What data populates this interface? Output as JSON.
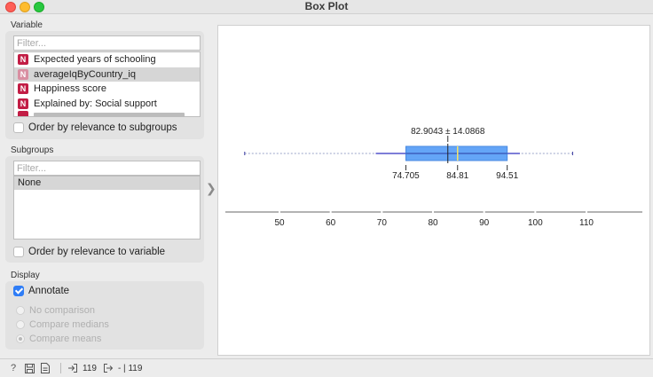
{
  "window": {
    "title": "Box Plot"
  },
  "variable": {
    "label": "Variable",
    "filter_placeholder": "Filter...",
    "items": [
      {
        "label": "Expected years of schooling",
        "type": "N"
      },
      {
        "label": "averageIqByCountry_iq",
        "type": "N"
      },
      {
        "label": "Happiness score",
        "type": "N"
      },
      {
        "label": "Explained by: Social support",
        "type": "N"
      }
    ],
    "order_label": "Order by relevance to subgroups"
  },
  "subgroups": {
    "label": "Subgroups",
    "filter_placeholder": "Filter...",
    "items": [
      "None"
    ],
    "order_label": "Order by relevance to variable"
  },
  "display": {
    "label": "Display",
    "annotate_label": "Annotate",
    "annotate_checked": true,
    "options": [
      "No comparison",
      "Compare medians",
      "Compare means"
    ],
    "selected_option": "Compare means"
  },
  "chart_data": {
    "type": "boxplot",
    "ticks": [
      50,
      60,
      70,
      80,
      90,
      100,
      110
    ],
    "xlim": [
      40,
      120
    ],
    "whisker_min": 43.2,
    "whisker_max": 107.3,
    "q1": 74.705,
    "median": 84.81,
    "q3": 94.51,
    "mean": 82.9043,
    "sd": 14.0868,
    "mean_label": "82.9043 ± 14.0868",
    "q1_label": "74.705",
    "median_label": "84.81",
    "q3_label": "94.51",
    "box_color": "#64a5f7"
  },
  "statusbar": {
    "input_count": "119",
    "output_count": "- | 119"
  }
}
